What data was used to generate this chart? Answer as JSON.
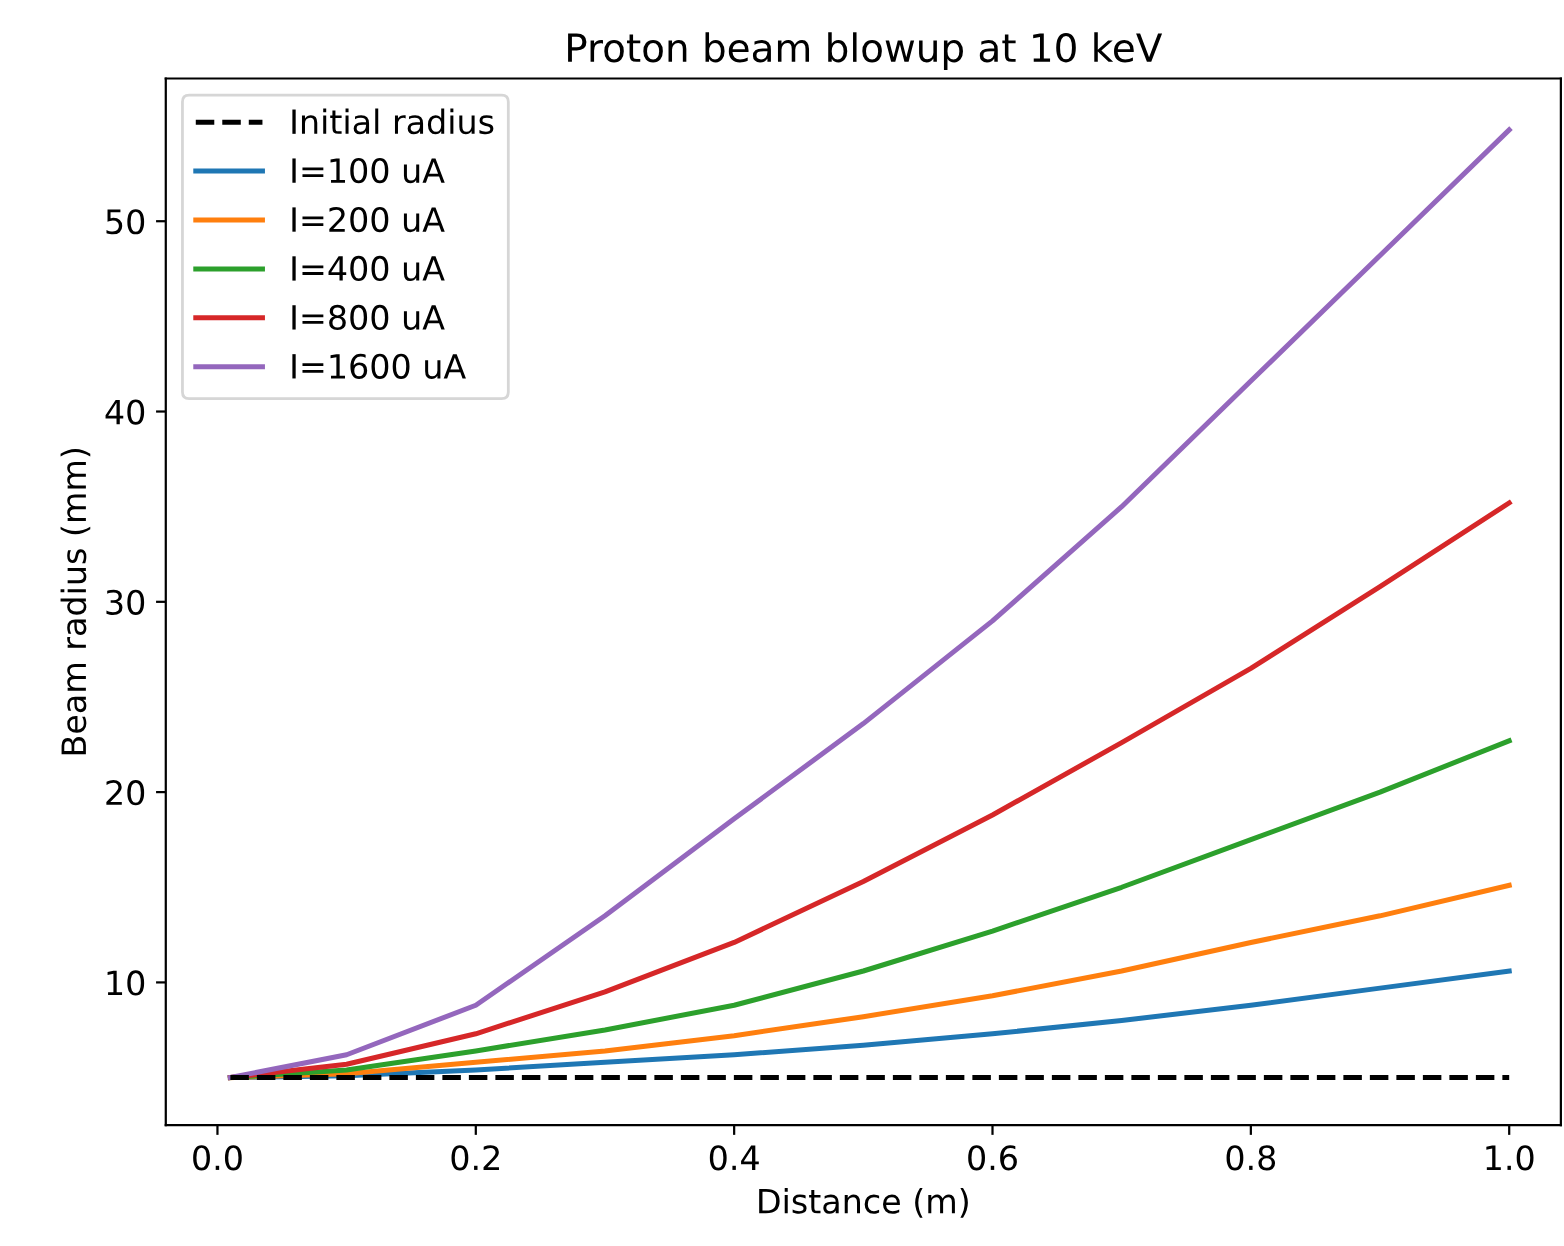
{
  "chart_data": {
    "type": "line",
    "title": "Proton beam blowup at 10 keV",
    "xlabel": "Distance (m)",
    "ylabel": "Beam radius (mm)",
    "x": [
      0.01,
      0.1,
      0.2,
      0.3,
      0.4,
      0.5,
      0.6,
      0.7,
      0.8,
      0.9,
      1.0
    ],
    "series": [
      {
        "name": "Initial radius",
        "color": "#000000",
        "line_style": "dashed",
        "values": [
          5,
          5,
          5,
          5,
          5,
          5,
          5,
          5,
          5,
          5,
          5
        ]
      },
      {
        "name": "I=100 uA",
        "color": "#1f77b4",
        "values": [
          5,
          5.1,
          5.4,
          5.8,
          6.2,
          6.7,
          7.3,
          8.0,
          8.8,
          9.7,
          10.6
        ]
      },
      {
        "name": "I=200 uA",
        "color": "#ff7f0e",
        "values": [
          5,
          5.2,
          5.8,
          6.4,
          7.2,
          8.2,
          9.3,
          10.6,
          12.1,
          13.5,
          15.1
        ]
      },
      {
        "name": "I=400 uA",
        "color": "#2ca02c",
        "values": [
          5,
          5.4,
          6.4,
          7.5,
          8.8,
          10.6,
          12.7,
          15.0,
          17.5,
          20.0,
          22.7
        ]
      },
      {
        "name": "I=800 uA",
        "color": "#d62728",
        "values": [
          5,
          5.7,
          7.3,
          9.5,
          12.1,
          15.3,
          18.8,
          22.6,
          26.5,
          30.8,
          35.2
        ]
      },
      {
        "name": "I=1600 uA",
        "color": "#9467bd",
        "values": [
          5,
          6.2,
          8.8,
          13.5,
          18.6,
          23.6,
          29.0,
          35.0,
          41.6,
          48.2,
          54.8
        ]
      }
    ],
    "xlim": [
      -0.04,
      1.04
    ],
    "ylim": [
      2.5,
      57.5
    ],
    "xticks": [
      {
        "value": 0,
        "label": "0.0"
      },
      0.2,
      0.4,
      0.6,
      0.8,
      {
        "value": 1,
        "label": "1.0"
      }
    ],
    "yticks": [
      10,
      20,
      30,
      40,
      50
    ],
    "legend": "top left",
    "grid": false,
    "line_style": "solid"
  }
}
